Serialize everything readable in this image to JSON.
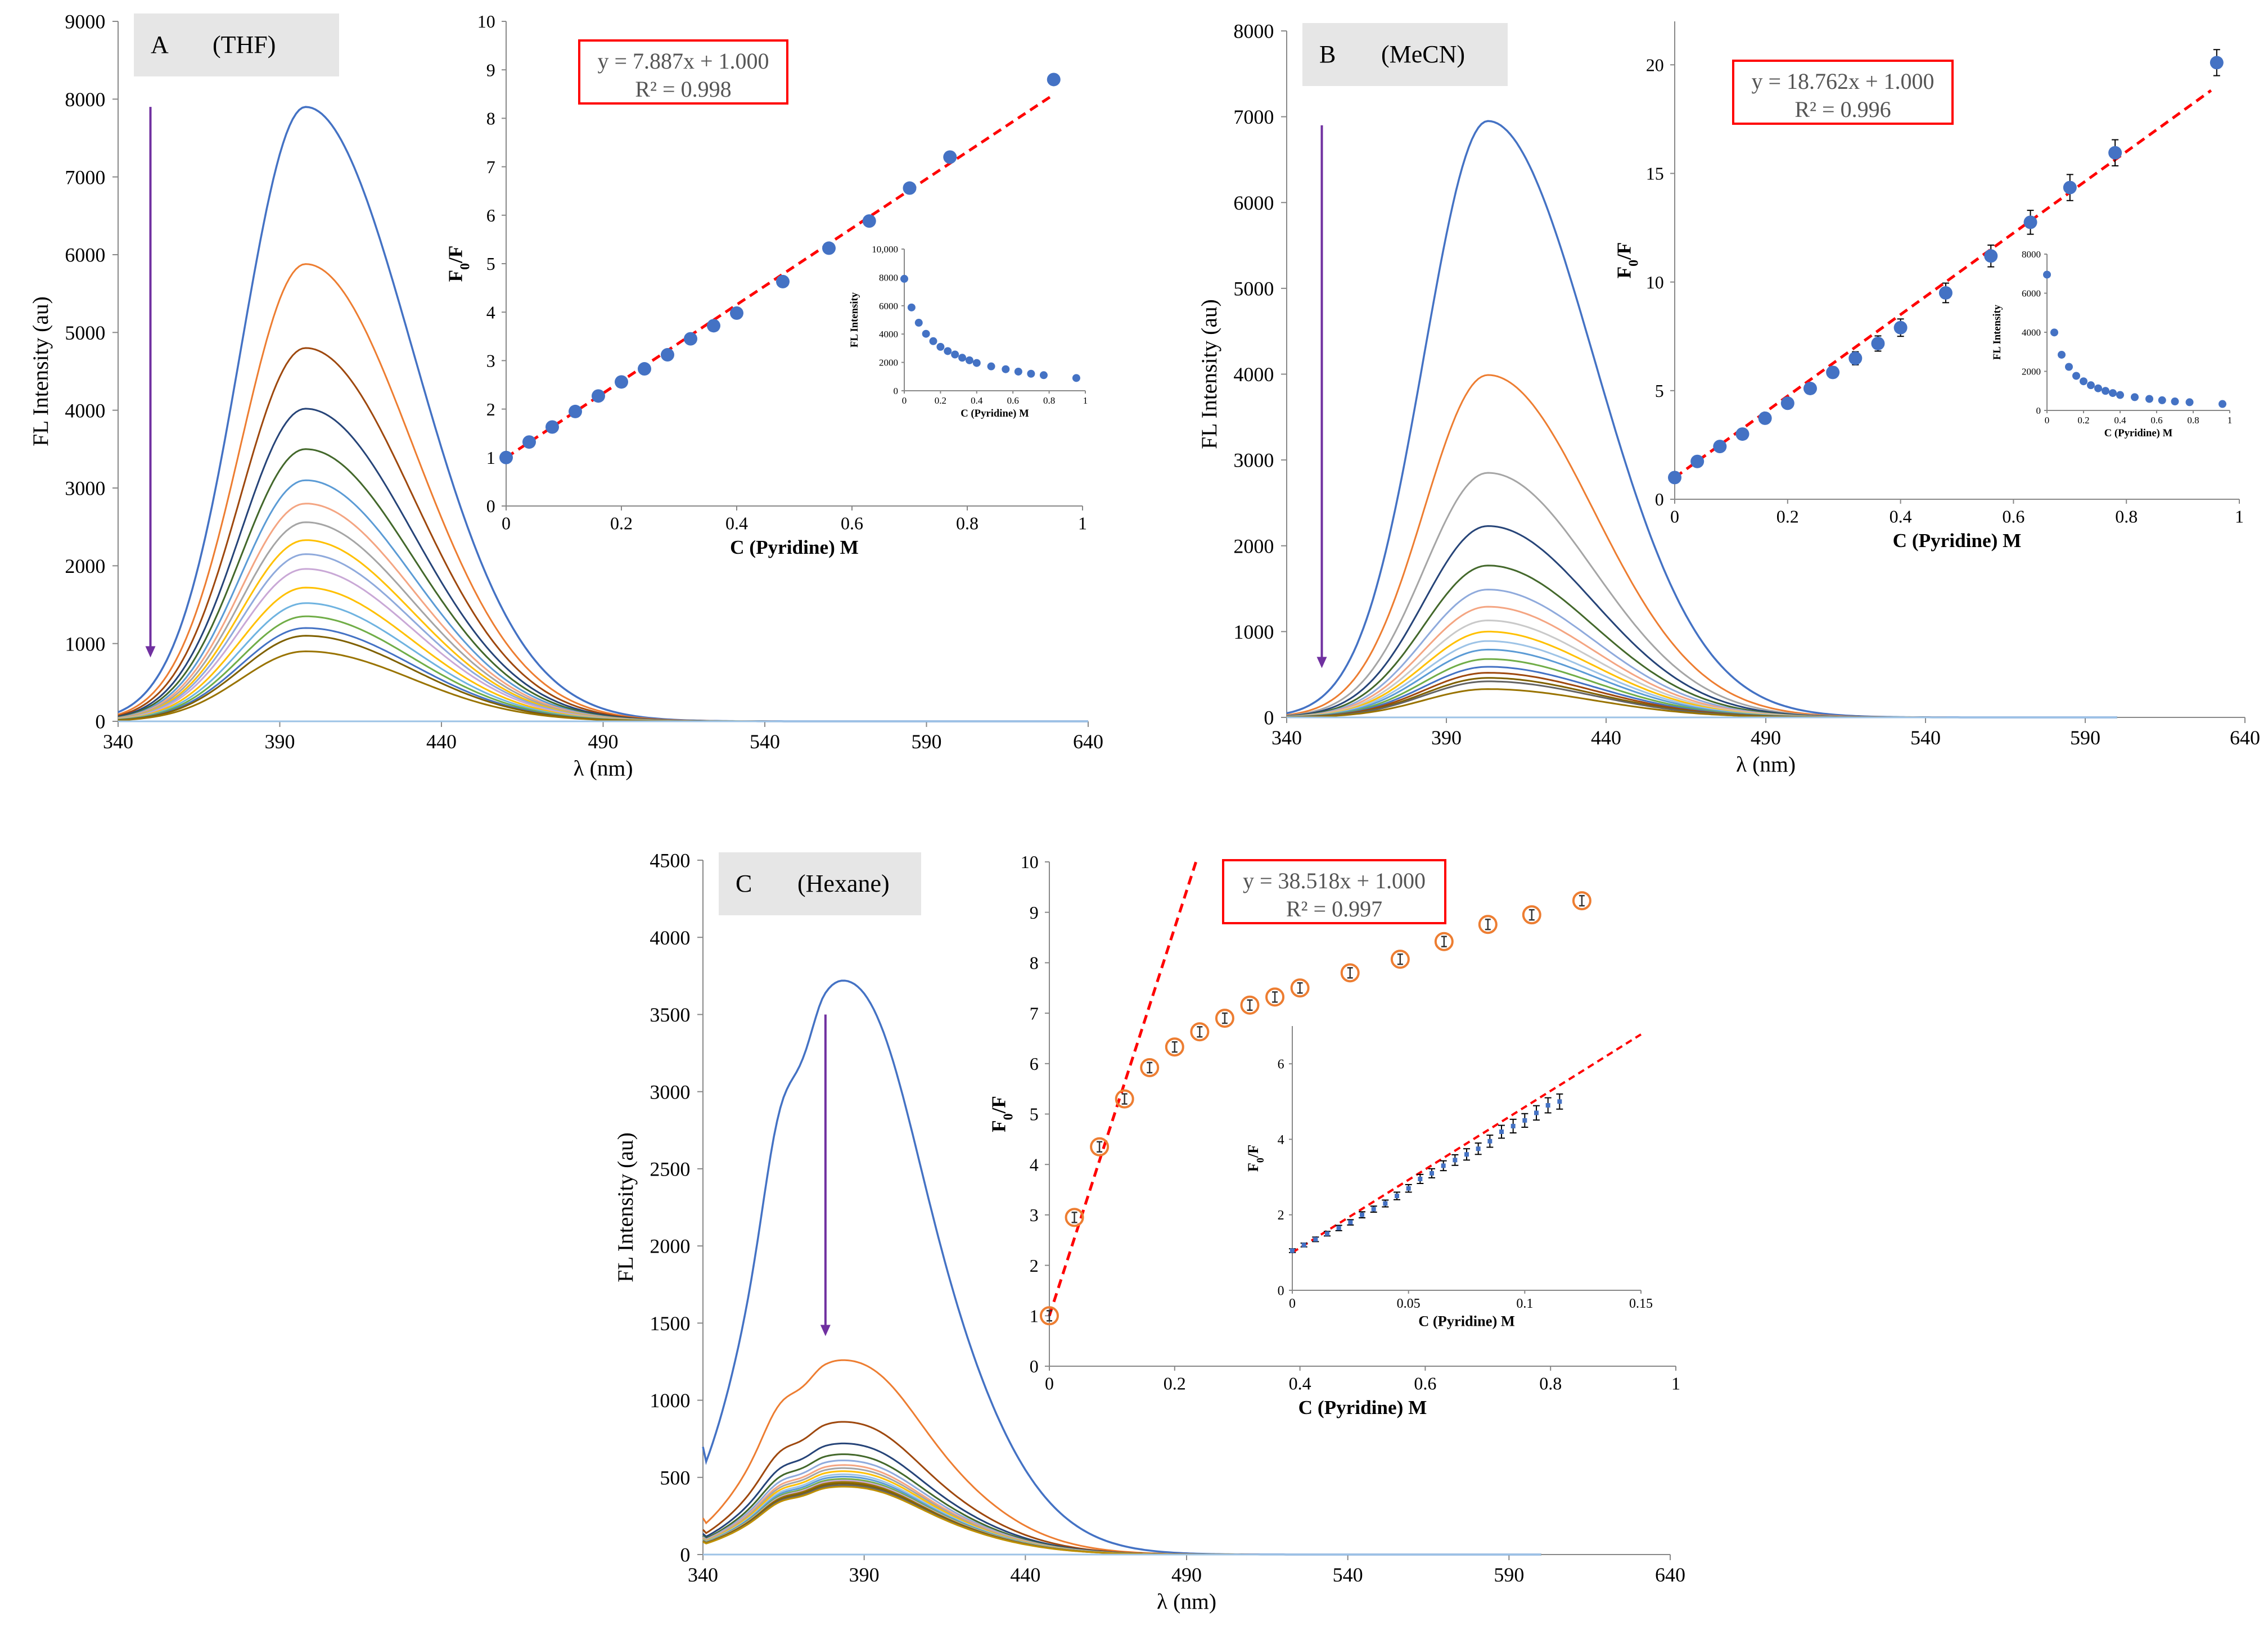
{
  "chart_data": [
    {
      "id": "A-main",
      "type": "line",
      "panel_tag": "A",
      "solvent": "(THF)",
      "xlabel": "λ (nm)",
      "ylabel": "FL Intensity (au)",
      "xlim": [
        340,
        640
      ],
      "ylim": [
        0,
        9000
      ],
      "xticks": [
        "340",
        "390",
        "440",
        "490",
        "540",
        "590",
        "640"
      ],
      "yticks": [
        "0",
        "1000",
        "2000",
        "3000",
        "4000",
        "5000",
        "6000",
        "7000",
        "8000",
        "9000"
      ],
      "curve_shape": "symmetric",
      "peak_x": 398,
      "x_range": [
        340,
        640
      ],
      "peaks": [
        7900,
        5880,
        4800,
        4020,
        3500,
        3100,
        2800,
        2560,
        2330,
        2150,
        1960,
        1720,
        1520,
        1350,
        1200,
        1100,
        900
      ],
      "colors": [
        "#4472c4",
        "#ed7d31",
        "#9e480e",
        "#264478",
        "#43682b",
        "#5b9bd5",
        "#f4a582",
        "#a5a5a5",
        "#ffc000",
        "#8faadc",
        "#c9a8d6",
        "#ffc000",
        "#6fb3e0",
        "#70ad47",
        "#4472c4",
        "#7f6000",
        "#997300"
      ],
      "arrow": {
        "x": 350,
        "y_from": 7900,
        "y_to": 850,
        "color": "#7030a0"
      }
    },
    {
      "id": "A-inset",
      "type": "scatter",
      "xlabel": "C (Pyridine) M",
      "ylabel": "F0/F",
      "xlim": [
        0,
        1
      ],
      "ylim": [
        0,
        10
      ],
      "xticks": [
        "0",
        "0.2",
        "0.4",
        "0.6",
        "0.8",
        "1"
      ],
      "yticks": [
        "0",
        "1",
        "2",
        "3",
        "4",
        "5",
        "6",
        "7",
        "8",
        "9",
        "10"
      ],
      "x": [
        0,
        0.04,
        0.08,
        0.12,
        0.16,
        0.2,
        0.24,
        0.28,
        0.32,
        0.36,
        0.4,
        0.48,
        0.56,
        0.63,
        0.7,
        0.77,
        0.95
      ],
      "y": [
        1.0,
        1.32,
        1.63,
        1.95,
        2.27,
        2.56,
        2.83,
        3.12,
        3.45,
        3.72,
        3.98,
        4.63,
        5.32,
        5.88,
        6.56,
        7.2,
        8.8
      ],
      "marker_color": "#4472c4",
      "fit_line": {
        "from": [
          0,
          1.0
        ],
        "to": [
          0.95,
          8.49
        ],
        "color": "#ff0000"
      },
      "equation": "y = 7.887x + 1.000",
      "r2": "R² = 0.998"
    },
    {
      "id": "A-inset2",
      "type": "scatter",
      "xlabel": "C (Pyridine) M",
      "ylabel": "FL Intensity",
      "xlim": [
        0,
        1
      ],
      "ylim": [
        0,
        10000
      ],
      "xticks": [
        "0",
        "0.2",
        "0.4",
        "0.6",
        "0.8",
        "1"
      ],
      "yticks": [
        "0",
        "2000",
        "4000",
        "6000",
        "8000",
        "10,000"
      ],
      "x": [
        0,
        0.04,
        0.08,
        0.12,
        0.16,
        0.2,
        0.24,
        0.28,
        0.32,
        0.36,
        0.4,
        0.48,
        0.56,
        0.63,
        0.7,
        0.77,
        0.95
      ],
      "y": [
        7900,
        5880,
        4800,
        4020,
        3500,
        3100,
        2800,
        2560,
        2330,
        2150,
        1960,
        1720,
        1520,
        1350,
        1200,
        1100,
        900
      ],
      "marker_color": "#4472c4"
    },
    {
      "id": "B-main",
      "type": "line",
      "panel_tag": "B",
      "solvent": "(MeCN)",
      "xlabel": "λ (nm)",
      "ylabel": "FL Intensity (au)",
      "xlim": [
        340,
        640
      ],
      "ylim": [
        0,
        8000
      ],
      "xticks": [
        "340",
        "390",
        "440",
        "490",
        "540",
        "590",
        "640"
      ],
      "yticks": [
        "0",
        "1000",
        "2000",
        "3000",
        "4000",
        "5000",
        "6000",
        "7000",
        "8000"
      ],
      "curve_shape": "symmetric",
      "peak_x": 403,
      "x_range": [
        340,
        600
      ],
      "peaks": [
        6950,
        3990,
        2850,
        2230,
        1770,
        1490,
        1290,
        1130,
        1000,
        890,
        790,
        680,
        590,
        520,
        460,
        420,
        330
      ],
      "colors": [
        "#4472c4",
        "#ed7d31",
        "#a5a5a5",
        "#264478",
        "#43682b",
        "#8faadc",
        "#f4a582",
        "#c9c9c9",
        "#ffc000",
        "#9dc3e6",
        "#5b9bd5",
        "#70ad47",
        "#4472c4",
        "#9e480e",
        "#7f6000",
        "#636363",
        "#997300"
      ],
      "arrow": {
        "x": 351,
        "y_from": 6900,
        "y_to": 600,
        "color": "#7030a0"
      }
    },
    {
      "id": "B-inset",
      "type": "scatter",
      "xlabel": "C (Pyridine) M",
      "ylabel": "F0/F",
      "xlim": [
        0,
        1
      ],
      "ylim": [
        0,
        22
      ],
      "xticks": [
        "0",
        "0.2",
        "0.4",
        "0.6",
        "0.8",
        "1"
      ],
      "yticks": [
        "0",
        "5",
        "10",
        "15",
        "20"
      ],
      "x": [
        0,
        0.04,
        0.08,
        0.12,
        0.16,
        0.2,
        0.24,
        0.28,
        0.32,
        0.36,
        0.4,
        0.48,
        0.56,
        0.63,
        0.7,
        0.78,
        0.96
      ],
      "y": [
        1.0,
        1.74,
        2.43,
        3.0,
        3.73,
        4.42,
        5.1,
        5.84,
        6.49,
        7.17,
        7.9,
        9.5,
        11.2,
        12.75,
        14.35,
        15.95,
        20.1
      ],
      "errors": [
        0.05,
        0.1,
        0.12,
        0.15,
        0.18,
        0.2,
        0.22,
        0.25,
        0.3,
        0.35,
        0.4,
        0.45,
        0.5,
        0.55,
        0.6,
        0.6,
        0.6
      ],
      "marker_color": "#4472c4",
      "fit_line": {
        "from": [
          0,
          1.0
        ],
        "to": [
          0.95,
          18.82
        ],
        "color": "#ff0000"
      },
      "equation": "y = 18.762x + 1.000",
      "r2": "R² = 0.996"
    },
    {
      "id": "B-inset2",
      "type": "scatter",
      "xlabel": "C (Pyridine) M",
      "ylabel": "FL Intensity",
      "xlim": [
        0,
        1
      ],
      "ylim": [
        0,
        8000
      ],
      "xticks": [
        "0",
        "0.2",
        "0.4",
        "0.6",
        "0.8",
        "1"
      ],
      "yticks": [
        "0",
        "2000",
        "4000",
        "6000",
        "8000"
      ],
      "x": [
        0,
        0.04,
        0.08,
        0.12,
        0.16,
        0.2,
        0.24,
        0.28,
        0.32,
        0.36,
        0.4,
        0.48,
        0.56,
        0.63,
        0.7,
        0.78,
        0.96
      ],
      "y": [
        6950,
        3990,
        2850,
        2230,
        1770,
        1490,
        1290,
        1130,
        1000,
        890,
        790,
        680,
        590,
        520,
        460,
        420,
        330
      ],
      "marker_color": "#4472c4"
    },
    {
      "id": "C-main",
      "type": "line",
      "panel_tag": "C",
      "solvent": "(Hexane)",
      "xlabel": "λ (nm)",
      "ylabel": "FL Intensity (au)",
      "xlim": [
        340,
        640
      ],
      "ylim": [
        0,
        4500
      ],
      "xticks": [
        "340",
        "390",
        "440",
        "490",
        "540",
        "590",
        "640"
      ],
      "yticks": [
        "0",
        "500",
        "1000",
        "1500",
        "2000",
        "2500",
        "3000",
        "3500",
        "4000",
        "4500"
      ],
      "curve_shape": "hexane",
      "peak_x": 378,
      "x_range": [
        340,
        600
      ],
      "peaks": [
        3720,
        1260,
        860,
        720,
        650,
        610,
        580,
        560,
        540,
        520,
        505,
        490,
        480,
        470,
        460,
        450,
        440
      ],
      "colors": [
        "#4472c4",
        "#ed7d31",
        "#9e480e",
        "#264478",
        "#43682b",
        "#8faadc",
        "#f4a582",
        "#a5a5a5",
        "#ffc000",
        "#9dc3e6",
        "#5b9bd5",
        "#70ad47",
        "#c9a8d6",
        "#997300",
        "#7f6000",
        "#636363",
        "#bf9000"
      ],
      "arrow": {
        "x": 378,
        "y_from": 3500,
        "y_to": 1430,
        "color": "#7030a0"
      }
    },
    {
      "id": "C-inset",
      "type": "scatter",
      "xlabel": "C (Pyridine) M",
      "ylabel": "F0/F",
      "xlim": [
        0,
        1
      ],
      "ylim": [
        0,
        10
      ],
      "xticks": [
        "0",
        "0.2",
        "0.4",
        "0.6",
        "0.8",
        "1"
      ],
      "yticks": [
        "0",
        "1",
        "2",
        "3",
        "4",
        "5",
        "6",
        "7",
        "8",
        "9",
        "10"
      ],
      "x": [
        0,
        0.04,
        0.08,
        0.12,
        0.16,
        0.2,
        0.24,
        0.28,
        0.32,
        0.36,
        0.4,
        0.48,
        0.56,
        0.63,
        0.7,
        0.77,
        0.85
      ],
      "y": [
        1.0,
        2.95,
        4.35,
        5.3,
        5.92,
        6.33,
        6.63,
        6.9,
        7.16,
        7.32,
        7.5,
        7.8,
        8.07,
        8.42,
        8.76,
        8.95,
        9.23
      ],
      "marker_color": "#ed7d31",
      "fit_line": {
        "from": [
          0,
          1.0
        ],
        "to": [
          0.234,
          10.0
        ],
        "color": "#ff0000"
      },
      "equation": "y = 38.518x + 1.000",
      "r2": "R² = 0.997"
    },
    {
      "id": "C-inset2",
      "type": "scatter",
      "xlabel": "C (Pyridine) M",
      "ylabel": "F0/F",
      "xlim": [
        0,
        0.15
      ],
      "ylim": [
        0,
        7
      ],
      "xticks": [
        "0",
        "0.05",
        "0.1",
        "0.15"
      ],
      "yticks": [
        "0",
        "2",
        "4",
        "6"
      ],
      "x": [
        0,
        0.005,
        0.01,
        0.015,
        0.02,
        0.025,
        0.03,
        0.035,
        0.04,
        0.045,
        0.05,
        0.055,
        0.06,
        0.065,
        0.07,
        0.075,
        0.08,
        0.085,
        0.09,
        0.095,
        0.1,
        0.105,
        0.11,
        0.115
      ],
      "y": [
        1.05,
        1.2,
        1.35,
        1.5,
        1.65,
        1.8,
        2.0,
        2.15,
        2.3,
        2.5,
        2.7,
        2.95,
        3.1,
        3.3,
        3.45,
        3.6,
        3.75,
        3.95,
        4.2,
        4.35,
        4.5,
        4.7,
        4.9,
        5.0
      ],
      "errors": [
        0.05,
        0.05,
        0.06,
        0.06,
        0.07,
        0.07,
        0.08,
        0.08,
        0.09,
        0.1,
        0.1,
        0.12,
        0.12,
        0.13,
        0.14,
        0.15,
        0.15,
        0.16,
        0.17,
        0.18,
        0.18,
        0.19,
        0.2,
        0.2
      ],
      "marker_color": "#4472c4",
      "fit_line": {
        "from": [
          0,
          1.0
        ],
        "to": [
          0.15,
          6.78
        ],
        "color": "#ff0000"
      }
    }
  ]
}
